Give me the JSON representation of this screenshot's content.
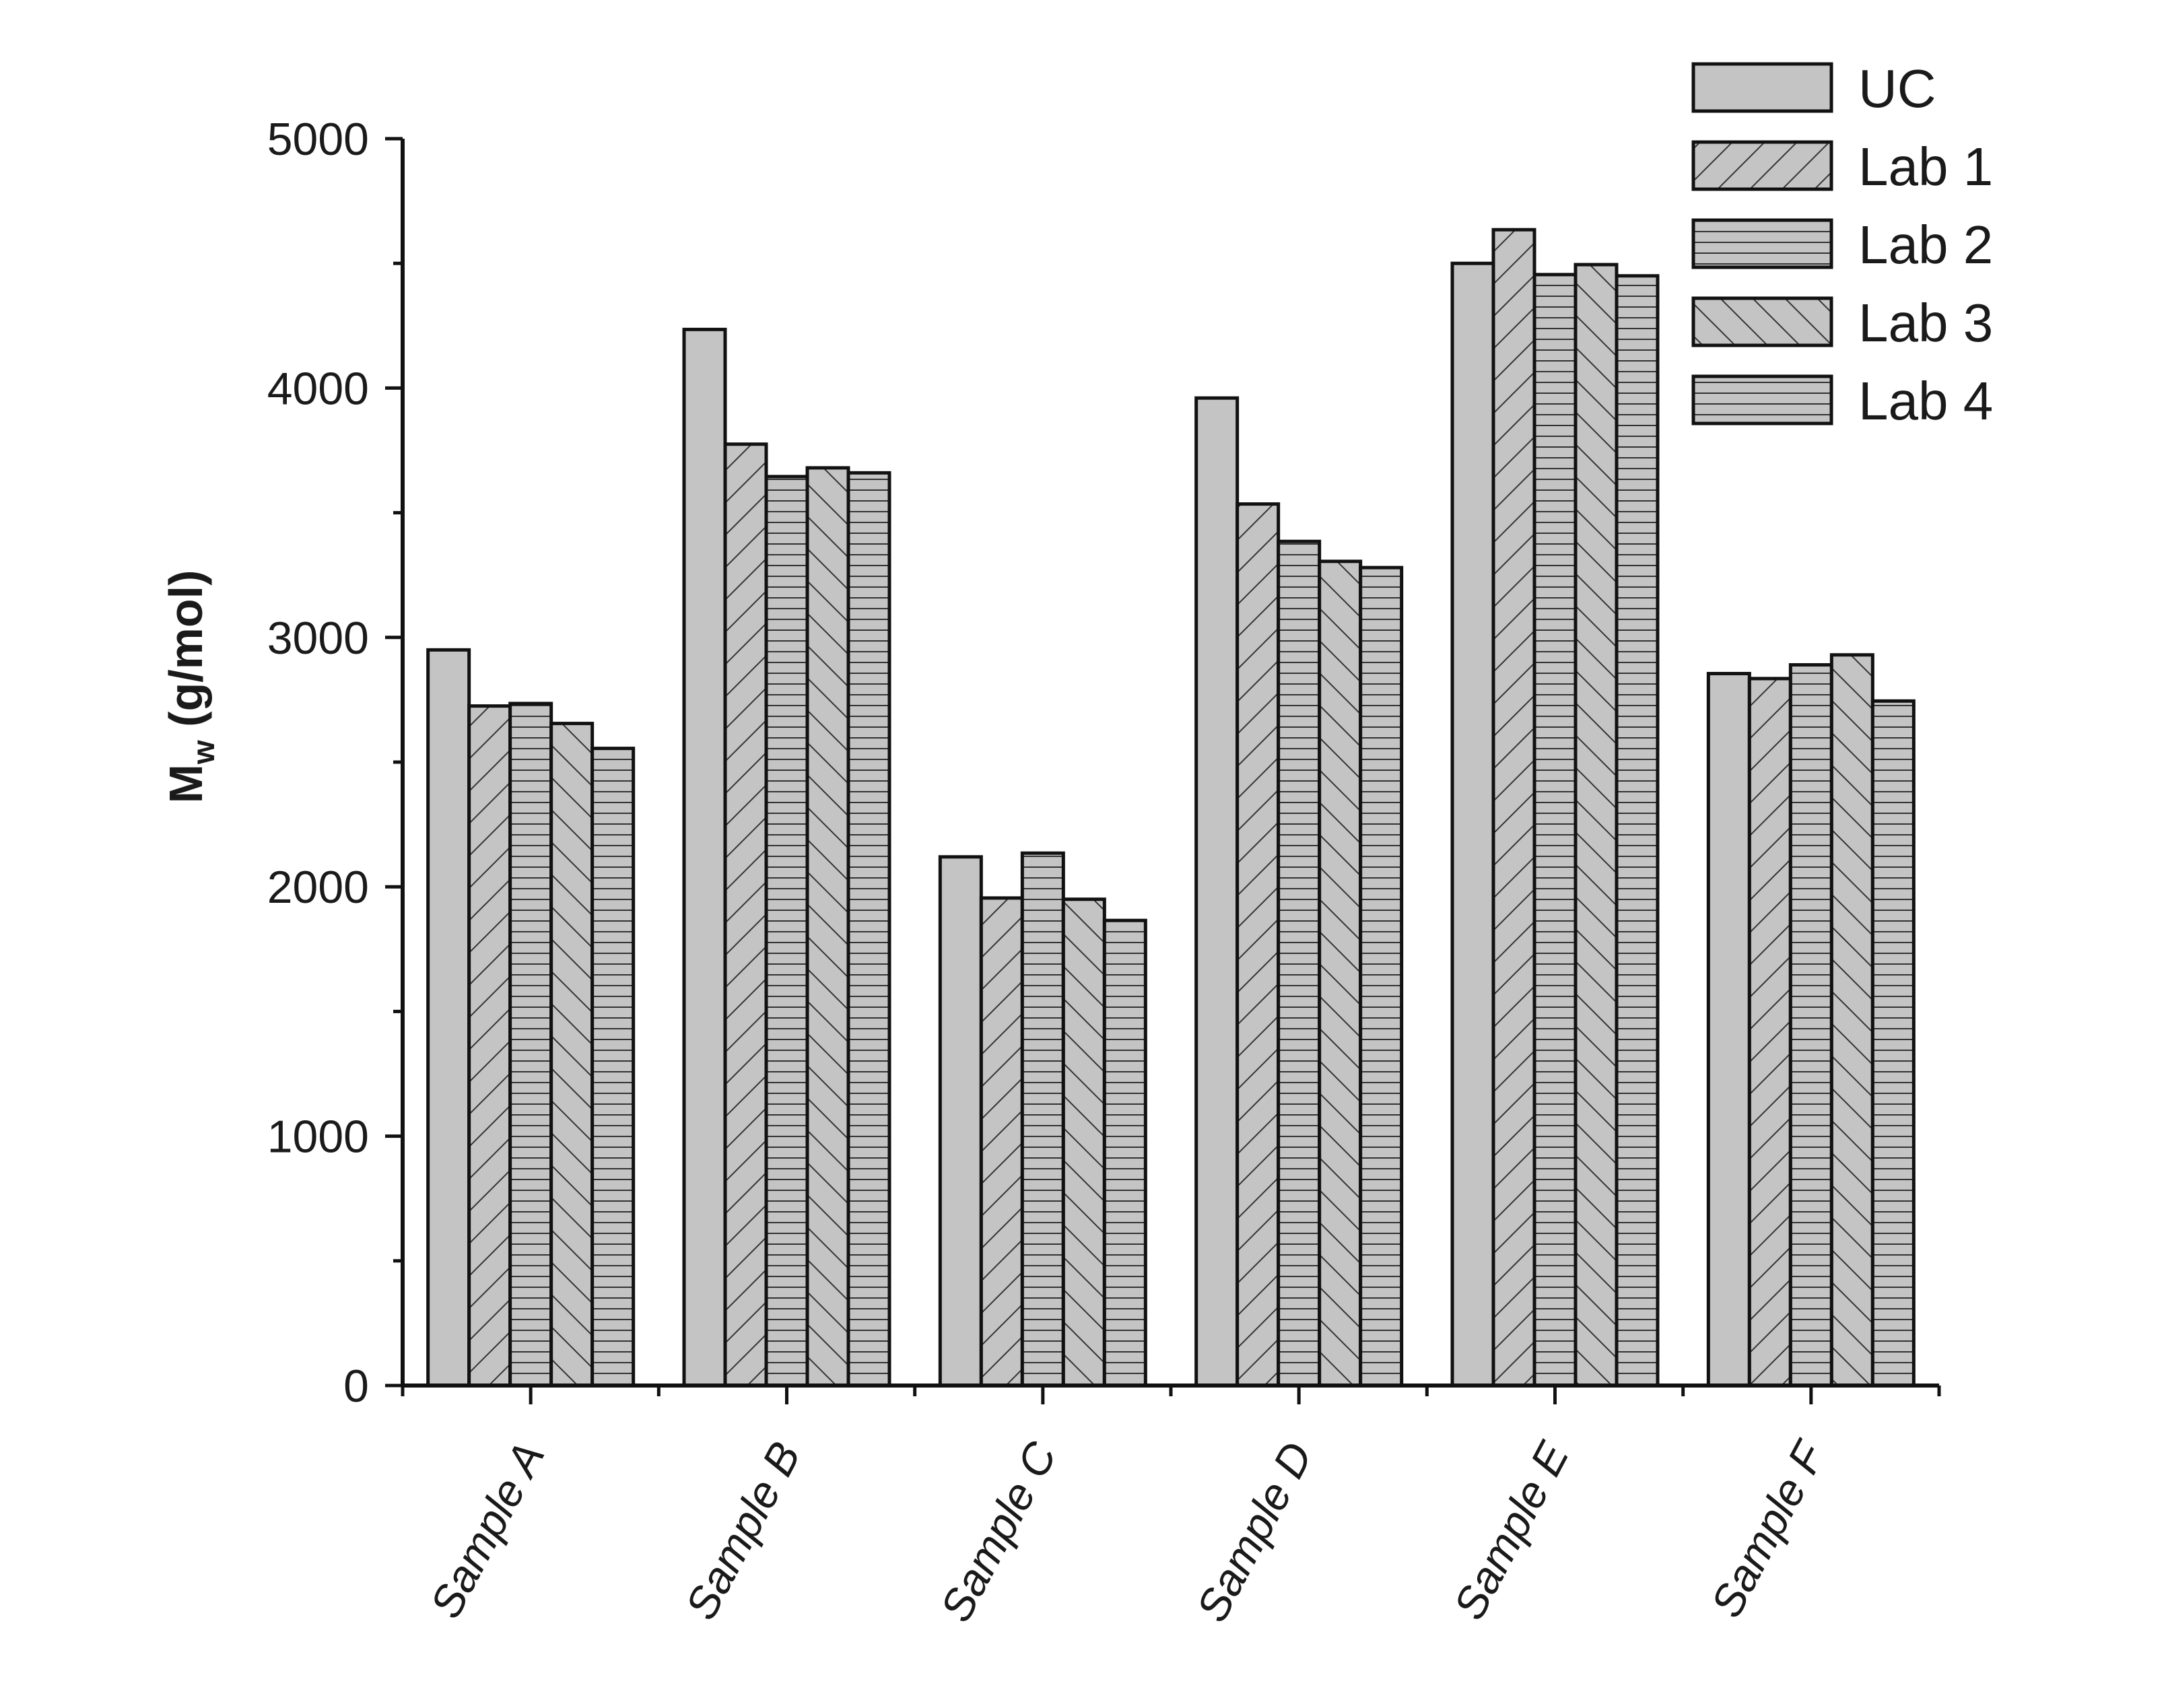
{
  "chart_data": {
    "type": "bar",
    "title": "",
    "xlabel": "",
    "ylabel": {
      "main": "M",
      "subscript": "w",
      "unit": " (g/mol)"
    },
    "ylim": [
      0,
      5000
    ],
    "yticks": [
      0,
      1000,
      2000,
      3000,
      4000,
      5000
    ],
    "yticks_labels": [
      "0",
      "1000",
      "2000",
      "3000",
      "4000",
      "5000"
    ],
    "grid": false,
    "legend_position": "top-right",
    "categories": [
      "Sample A",
      "Sample B",
      "Sample C",
      "Sample D",
      "Sample E",
      "Sample F"
    ],
    "series": [
      {
        "name": "UC",
        "pattern": "solid",
        "values": [
          2950,
          4235,
          2120,
          3960,
          4500,
          2855
        ]
      },
      {
        "name": "Lab 1",
        "pattern": "diagonal-forward",
        "values": [
          2725,
          3775,
          1955,
          3535,
          4635,
          2835
        ]
      },
      {
        "name": "Lab 2",
        "pattern": "horizontal",
        "values": [
          2735,
          3645,
          2135,
          3385,
          4455,
          2890
        ]
      },
      {
        "name": "Lab 3",
        "pattern": "diagonal-back",
        "values": [
          2655,
          3680,
          1950,
          3305,
          4495,
          2930
        ]
      },
      {
        "name": "Lab 4",
        "pattern": "horizontal",
        "values": [
          2555,
          3660,
          1865,
          3280,
          4450,
          2745
        ]
      }
    ],
    "colors": {
      "bar_fill": "#c4c4c4",
      "stroke": "#111111",
      "hatch": "#333333"
    }
  }
}
